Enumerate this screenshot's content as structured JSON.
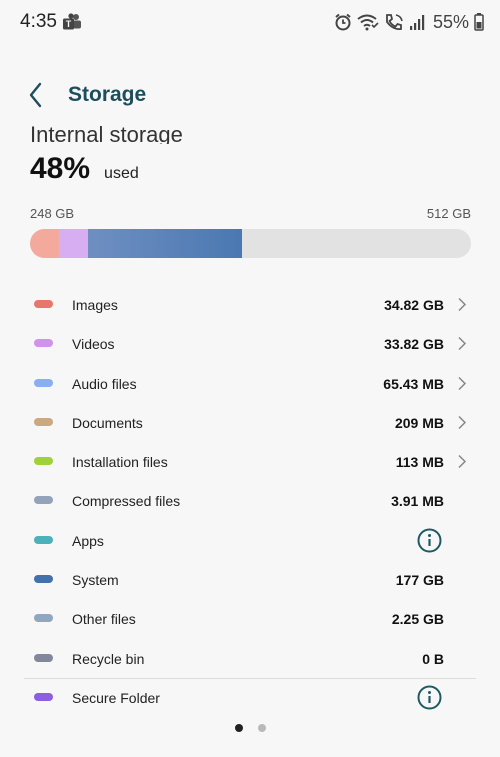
{
  "status": {
    "time": "4:35",
    "battery": "55%",
    "icons": [
      "teams-icon",
      "alarm-icon",
      "wifi-calling-icon",
      "call-icon",
      "signal-icon",
      "battery-icon"
    ]
  },
  "header": {
    "title": "Storage",
    "back_icon": "back-chevron-icon"
  },
  "section": {
    "heading": "Internal storage",
    "percent": "48%",
    "used_label": "used",
    "used_amount": "248 GB",
    "total": "512 GB"
  },
  "bar": {
    "track_color": "#e2e2e2",
    "segments": [
      {
        "name": "images",
        "color": "#f3a99b"
      },
      {
        "name": "videos",
        "color": "#d7aef2"
      },
      {
        "name": "system",
        "color": "#5b82b8"
      }
    ]
  },
  "categories": [
    {
      "label": "Images",
      "size": "34.82 GB",
      "color": "#e8776b",
      "action": "chevron"
    },
    {
      "label": "Videos",
      "size": "33.82 GB",
      "color": "#cf93ee",
      "action": "chevron"
    },
    {
      "label": "Audio files",
      "size": "65.43 MB",
      "color": "#89aef2",
      "action": "chevron"
    },
    {
      "label": "Documents",
      "size": "209 MB",
      "color": "#c9a982",
      "action": "chevron"
    },
    {
      "label": "Installation files",
      "size": "113 MB",
      "color": "#9fd13c",
      "action": "chevron"
    },
    {
      "label": "Compressed files",
      "size": "3.91 MB",
      "color": "#93a4ba",
      "action": "none"
    },
    {
      "label": "Apps",
      "size": "",
      "color": "#4db1bb",
      "action": "info"
    },
    {
      "label": "System",
      "size": "177 GB",
      "color": "#4571aa",
      "action": "none"
    },
    {
      "label": "Other files",
      "size": "2.25 GB",
      "color": "#8fa8c0",
      "action": "none"
    },
    {
      "label": "Recycle bin",
      "size": "0 B",
      "color": "#83879a",
      "action": "none"
    },
    {
      "label": "Secure Folder",
      "size": "",
      "color": "#8a5fe0",
      "action": "info"
    }
  ],
  "pagination": {
    "current": 1,
    "total": 2
  }
}
